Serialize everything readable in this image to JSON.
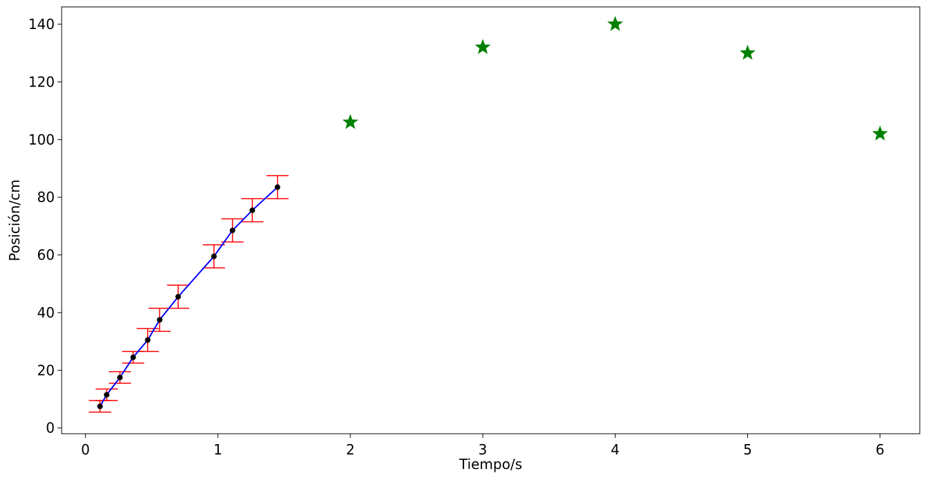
{
  "chart_data": {
    "type": "scatter",
    "title": "",
    "xlabel": "Tiempo/s",
    "ylabel": "Posición/cm",
    "xlim": [
      -0.18,
      6.3
    ],
    "ylim": [
      -2,
      146
    ],
    "xticks": [
      0,
      1,
      2,
      3,
      4,
      5,
      6
    ],
    "yticks": [
      0,
      20,
      40,
      60,
      80,
      100,
      120,
      140
    ],
    "grid": false,
    "legend": "none",
    "colors": {
      "measured_points": "#000000",
      "fit_line": "#0000ff",
      "error_bars": "#ff0000",
      "star_points": "#008000"
    },
    "series": [
      {
        "type": "line+errorbar",
        "x": [
          0.11,
          0.16,
          0.26,
          0.36,
          0.47,
          0.56,
          0.7,
          0.97,
          1.11,
          1.26,
          1.45
        ],
        "y": [
          7.5,
          11.5,
          17.5,
          24.5,
          30.5,
          37.5,
          45.5,
          59.5,
          68.5,
          75.5,
          83.5
        ],
        "yerr": [
          2,
          2,
          2,
          2,
          4,
          4,
          4,
          4,
          4,
          4,
          4
        ]
      },
      {
        "type": "scatter",
        "marker": "star",
        "x": [
          2,
          3,
          4,
          5,
          6
        ],
        "y": [
          106,
          132,
          140,
          130,
          102
        ]
      }
    ]
  }
}
